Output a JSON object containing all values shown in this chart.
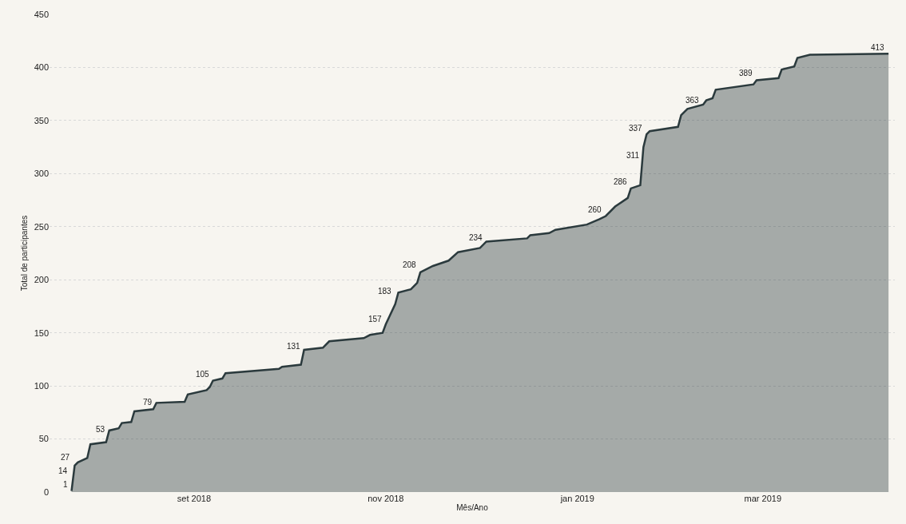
{
  "chart_data": {
    "type": "area",
    "xlabel": "Mês/Ano",
    "ylabel": "Total de participantes",
    "x": [
      "2018-07-24",
      "2018-07-25",
      "2018-07-26",
      "2018-07-29",
      "2018-07-30",
      "2018-08-04",
      "2018-08-05",
      "2018-08-08",
      "2018-08-09",
      "2018-08-12",
      "2018-08-13",
      "2018-08-19",
      "2018-08-20",
      "2018-08-29",
      "2018-08-30",
      "2018-09-05",
      "2018-09-06",
      "2018-09-07",
      "2018-09-10",
      "2018-09-11",
      "2018-09-28",
      "2018-09-29",
      "2018-10-05",
      "2018-10-06",
      "2018-10-12",
      "2018-10-14",
      "2018-10-25",
      "2018-10-27",
      "2018-10-31",
      "2018-11-01",
      "2018-11-04",
      "2018-11-05",
      "2018-11-09",
      "2018-11-11",
      "2018-11-12",
      "2018-11-16",
      "2018-11-21",
      "2018-11-24",
      "2018-12-01",
      "2018-12-03",
      "2018-12-16",
      "2018-12-17",
      "2018-12-23",
      "2018-12-25",
      "2019-01-04",
      "2019-01-08",
      "2019-01-10",
      "2019-01-13",
      "2019-01-17",
      "2019-01-18",
      "2019-01-21",
      "2019-01-22",
      "2019-01-23",
      "2019-01-24",
      "2019-02-02",
      "2019-02-03",
      "2019-02-05",
      "2019-02-10",
      "2019-02-11",
      "2019-02-13",
      "2019-02-14",
      "2019-02-26",
      "2019-02-27",
      "2019-03-06",
      "2019-03-07",
      "2019-03-11",
      "2019-03-12",
      "2019-03-16",
      "2019-04-10"
    ],
    "series": [
      {
        "color": "#2b3a3d",
        "values": [
          1,
          25,
          28,
          32,
          45,
          47,
          58,
          60,
          65,
          66,
          76,
          78,
          84,
          85,
          92,
          96,
          99,
          105,
          107,
          112,
          116,
          118,
          120,
          134,
          136,
          142,
          145,
          148,
          150,
          158,
          177,
          188,
          191,
          197,
          207,
          213,
          218,
          226,
          230,
          236,
          239,
          242,
          244,
          247,
          252,
          257,
          260,
          269,
          277,
          286,
          289,
          325,
          337,
          340,
          344,
          355,
          361,
          365,
          369,
          371,
          379,
          384,
          388,
          390,
          398,
          401,
          409,
          412,
          413
        ]
      }
    ],
    "annotations": [
      {
        "text": "1",
        "x": "2018-07-24",
        "y": 1
      },
      {
        "text": "14",
        "x": "2018-07-24",
        "y": 14
      },
      {
        "text": "27",
        "x": "2018-07-25",
        "y": 27
      },
      {
        "text": "53",
        "x": "2018-08-05",
        "y": 53
      },
      {
        "text": "79",
        "x": "2018-08-20",
        "y": 79
      },
      {
        "text": "105",
        "x": "2018-09-07",
        "y": 105
      },
      {
        "text": "131",
        "x": "2018-10-06",
        "y": 131
      },
      {
        "text": "157",
        "x": "2018-11-01",
        "y": 157
      },
      {
        "text": "183",
        "x": "2018-11-04",
        "y": 183
      },
      {
        "text": "208",
        "x": "2018-11-12",
        "y": 208
      },
      {
        "text": "234",
        "x": "2018-12-03",
        "y": 234
      },
      {
        "text": "260",
        "x": "2019-01-10",
        "y": 260
      },
      {
        "text": "286",
        "x": "2019-01-18",
        "y": 286
      },
      {
        "text": "311",
        "x": "2019-01-22",
        "y": 311
      },
      {
        "text": "337",
        "x": "2019-01-23",
        "y": 337
      },
      {
        "text": "363",
        "x": "2019-02-10",
        "y": 363
      },
      {
        "text": "389",
        "x": "2019-02-27",
        "y": 389
      },
      {
        "text": "413",
        "x": "2019-04-10",
        "y": 413
      }
    ],
    "xlim": [
      "2018-07-17",
      "2019-04-12"
    ],
    "xticks": [
      {
        "value": "2018-09-01",
        "label": "set 2018"
      },
      {
        "value": "2018-11-01",
        "label": "nov 2018"
      },
      {
        "value": "2019-01-01",
        "label": "jan 2019"
      },
      {
        "value": "2019-03-01",
        "label": "mar 2019"
      }
    ],
    "ylim": [
      0,
      450
    ],
    "yticks": [
      0,
      50,
      100,
      150,
      200,
      250,
      300,
      350,
      400,
      450
    ],
    "grid": "y"
  }
}
